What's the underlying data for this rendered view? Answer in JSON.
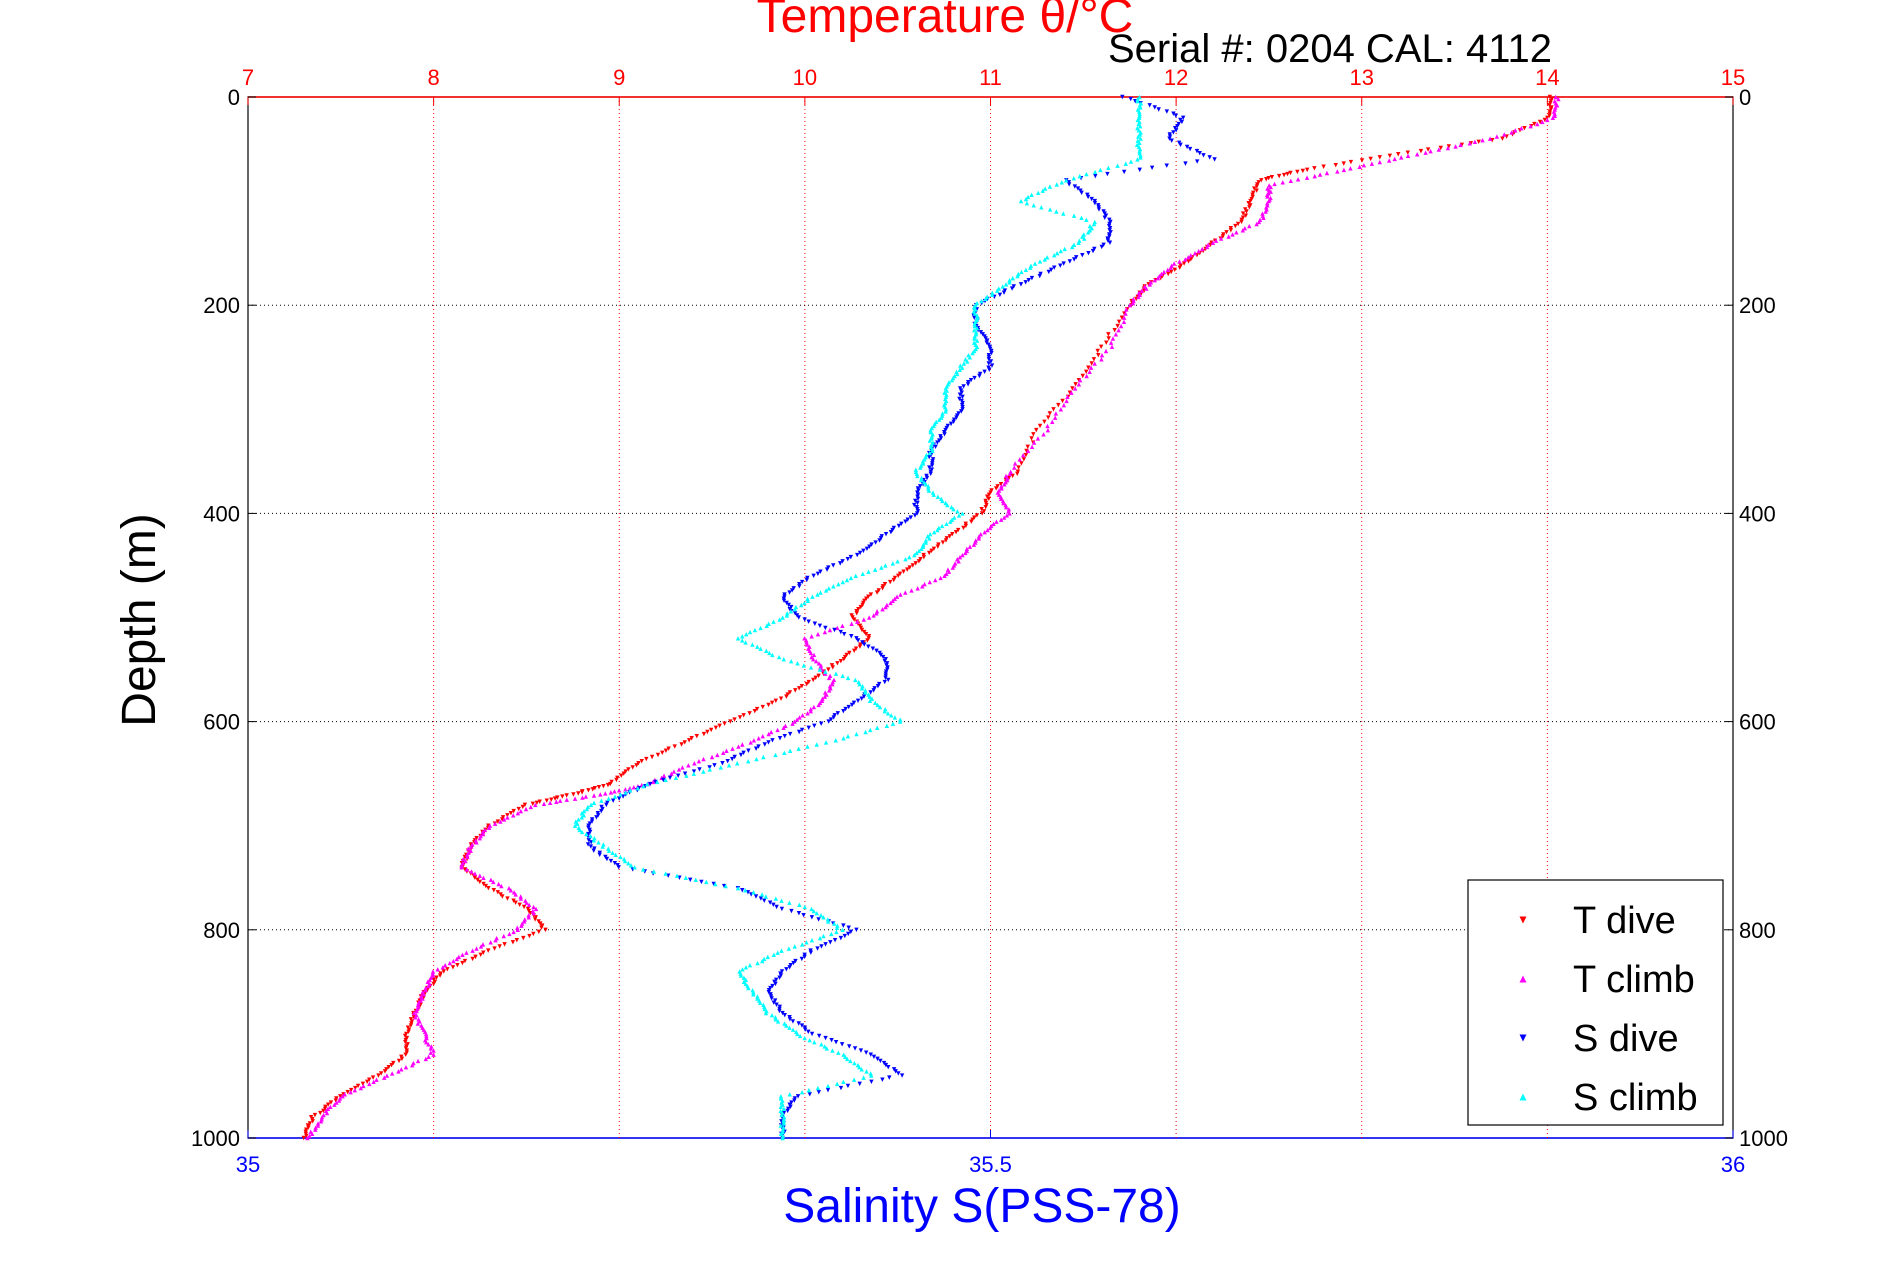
{
  "chart_data": {
    "type": "scatter",
    "title": "Temperature θ/°C",
    "subtitle": "Serial #: 0204  CAL: 4112",
    "ylabel": "Depth (m)",
    "xlabel": "Salinity S(PSS-78)",
    "y": {
      "range": [
        0,
        1000
      ],
      "reversed": true,
      "ticks": [
        "0",
        "200",
        "400",
        "600",
        "800",
        "1000"
      ]
    },
    "temperature_axis": {
      "range": [
        7,
        15
      ],
      "ticks": [
        "7",
        "8",
        "9",
        "10",
        "11",
        "12",
        "13",
        "14",
        "15"
      ],
      "color": "#ff0000"
    },
    "salinity_axis": {
      "range": [
        35,
        36
      ],
      "ticks": [
        "35",
        "35.5",
        "36"
      ],
      "color": "#0000ff"
    },
    "grid": true,
    "legend_position": "bottom-right",
    "series": [
      {
        "name": "T dive",
        "axis": "temperature",
        "color": "#ff0000",
        "marker": "triangle-down",
        "points": [
          [
            0,
            14.02
          ],
          [
            20,
            14.01
          ],
          [
            40,
            13.75
          ],
          [
            55,
            13.2
          ],
          [
            70,
            12.7
          ],
          [
            80,
            12.45
          ],
          [
            100,
            12.4
          ],
          [
            120,
            12.35
          ],
          [
            140,
            12.2
          ],
          [
            160,
            12.05
          ],
          [
            180,
            11.85
          ],
          [
            200,
            11.75
          ],
          [
            240,
            11.6
          ],
          [
            280,
            11.45
          ],
          [
            320,
            11.25
          ],
          [
            360,
            11.15
          ],
          [
            380,
            11.0
          ],
          [
            400,
            10.95
          ],
          [
            420,
            10.8
          ],
          [
            440,
            10.65
          ],
          [
            460,
            10.5
          ],
          [
            480,
            10.35
          ],
          [
            500,
            10.25
          ],
          [
            520,
            10.35
          ],
          [
            540,
            10.2
          ],
          [
            560,
            10.05
          ],
          [
            580,
            9.85
          ],
          [
            600,
            9.6
          ],
          [
            620,
            9.35
          ],
          [
            640,
            9.1
          ],
          [
            660,
            8.95
          ],
          [
            670,
            8.75
          ],
          [
            680,
            8.5
          ],
          [
            700,
            8.3
          ],
          [
            720,
            8.2
          ],
          [
            740,
            8.15
          ],
          [
            760,
            8.3
          ],
          [
            780,
            8.5
          ],
          [
            800,
            8.6
          ],
          [
            820,
            8.3
          ],
          [
            840,
            8.05
          ],
          [
            860,
            7.95
          ],
          [
            880,
            7.9
          ],
          [
            900,
            7.85
          ],
          [
            920,
            7.85
          ],
          [
            940,
            7.7
          ],
          [
            960,
            7.5
          ],
          [
            980,
            7.35
          ],
          [
            1000,
            7.3
          ]
        ]
      },
      {
        "name": "T climb",
        "axis": "temperature",
        "color": "#ff00ff",
        "marker": "triangle-up",
        "points": [
          [
            0,
            14.05
          ],
          [
            20,
            14.04
          ],
          [
            40,
            13.7
          ],
          [
            55,
            13.3
          ],
          [
            70,
            12.9
          ],
          [
            85,
            12.5
          ],
          [
            100,
            12.5
          ],
          [
            120,
            12.45
          ],
          [
            140,
            12.2
          ],
          [
            160,
            12.0
          ],
          [
            180,
            11.85
          ],
          [
            200,
            11.75
          ],
          [
            240,
            11.65
          ],
          [
            280,
            11.45
          ],
          [
            320,
            11.3
          ],
          [
            360,
            11.1
          ],
          [
            380,
            11.05
          ],
          [
            400,
            11.1
          ],
          [
            420,
            10.95
          ],
          [
            440,
            10.85
          ],
          [
            460,
            10.75
          ],
          [
            480,
            10.5
          ],
          [
            500,
            10.35
          ],
          [
            520,
            10.0
          ],
          [
            540,
            10.05
          ],
          [
            560,
            10.15
          ],
          [
            580,
            10.1
          ],
          [
            600,
            9.95
          ],
          [
            620,
            9.7
          ],
          [
            640,
            9.4
          ],
          [
            660,
            9.15
          ],
          [
            670,
            8.9
          ],
          [
            680,
            8.55
          ],
          [
            700,
            8.3
          ],
          [
            720,
            8.2
          ],
          [
            740,
            8.15
          ],
          [
            760,
            8.4
          ],
          [
            780,
            8.55
          ],
          [
            800,
            8.45
          ],
          [
            820,
            8.2
          ],
          [
            840,
            8.0
          ],
          [
            860,
            7.95
          ],
          [
            880,
            7.9
          ],
          [
            900,
            7.95
          ],
          [
            920,
            8.0
          ],
          [
            940,
            7.75
          ],
          [
            960,
            7.5
          ],
          [
            980,
            7.4
          ],
          [
            1000,
            7.32
          ]
        ]
      },
      {
        "name": "S dive",
        "axis": "salinity",
        "color": "#0000ff",
        "marker": "triangle-down",
        "points": [
          [
            0,
            35.59
          ],
          [
            20,
            35.63
          ],
          [
            40,
            35.62
          ],
          [
            60,
            35.65
          ],
          [
            80,
            35.55
          ],
          [
            100,
            35.57
          ],
          [
            120,
            35.58
          ],
          [
            140,
            35.58
          ],
          [
            160,
            35.55
          ],
          [
            180,
            35.52
          ],
          [
            200,
            35.49
          ],
          [
            220,
            35.49
          ],
          [
            240,
            35.5
          ],
          [
            260,
            35.5
          ],
          [
            280,
            35.48
          ],
          [
            300,
            35.48
          ],
          [
            320,
            35.47
          ],
          [
            340,
            35.46
          ],
          [
            360,
            35.46
          ],
          [
            380,
            35.45
          ],
          [
            400,
            35.45
          ],
          [
            420,
            35.43
          ],
          [
            440,
            35.41
          ],
          [
            460,
            35.38
          ],
          [
            480,
            35.36
          ],
          [
            500,
            35.37
          ],
          [
            520,
            35.41
          ],
          [
            540,
            35.43
          ],
          [
            560,
            35.43
          ],
          [
            580,
            35.41
          ],
          [
            600,
            35.39
          ],
          [
            620,
            35.35
          ],
          [
            640,
            35.32
          ],
          [
            660,
            35.27
          ],
          [
            680,
            35.24
          ],
          [
            700,
            35.23
          ],
          [
            720,
            35.23
          ],
          [
            740,
            35.25
          ],
          [
            760,
            35.33
          ],
          [
            780,
            35.36
          ],
          [
            800,
            35.41
          ],
          [
            820,
            35.38
          ],
          [
            840,
            35.36
          ],
          [
            860,
            35.35
          ],
          [
            880,
            35.36
          ],
          [
            900,
            35.38
          ],
          [
            920,
            35.42
          ],
          [
            940,
            35.44
          ],
          [
            960,
            35.37
          ],
          [
            980,
            35.36
          ],
          [
            1000,
            35.36
          ]
        ]
      },
      {
        "name": "S climb",
        "axis": "salinity",
        "color": "#00ffff",
        "marker": "triangle-up",
        "points": [
          [
            0,
            35.6
          ],
          [
            20,
            35.6
          ],
          [
            40,
            35.6
          ],
          [
            60,
            35.6
          ],
          [
            80,
            35.55
          ],
          [
            100,
            35.52
          ],
          [
            120,
            35.57
          ],
          [
            140,
            35.56
          ],
          [
            160,
            35.53
          ],
          [
            180,
            35.51
          ],
          [
            200,
            35.49
          ],
          [
            220,
            35.49
          ],
          [
            240,
            35.49
          ],
          [
            260,
            35.48
          ],
          [
            280,
            35.47
          ],
          [
            300,
            35.47
          ],
          [
            320,
            35.46
          ],
          [
            340,
            35.46
          ],
          [
            360,
            35.45
          ],
          [
            380,
            35.46
          ],
          [
            400,
            35.48
          ],
          [
            420,
            35.46
          ],
          [
            440,
            35.45
          ],
          [
            460,
            35.41
          ],
          [
            480,
            35.38
          ],
          [
            500,
            35.36
          ],
          [
            520,
            35.33
          ],
          [
            540,
            35.36
          ],
          [
            560,
            35.41
          ],
          [
            580,
            35.42
          ],
          [
            600,
            35.44
          ],
          [
            620,
            35.39
          ],
          [
            640,
            35.33
          ],
          [
            660,
            35.27
          ],
          [
            680,
            35.23
          ],
          [
            700,
            35.22
          ],
          [
            720,
            35.24
          ],
          [
            740,
            35.26
          ],
          [
            760,
            35.33
          ],
          [
            780,
            35.38
          ],
          [
            800,
            35.4
          ],
          [
            820,
            35.36
          ],
          [
            840,
            35.33
          ],
          [
            860,
            35.34
          ],
          [
            880,
            35.35
          ],
          [
            900,
            35.37
          ],
          [
            920,
            35.4
          ],
          [
            940,
            35.42
          ],
          [
            960,
            35.36
          ],
          [
            980,
            35.36
          ],
          [
            1000,
            35.36
          ]
        ]
      }
    ]
  }
}
